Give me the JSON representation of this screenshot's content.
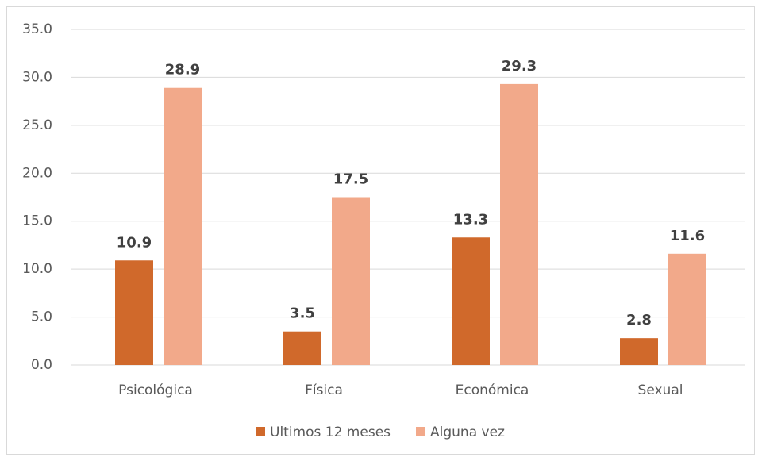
{
  "chart_data": {
    "type": "bar",
    "categories": [
      "Psicológica",
      "Física",
      "Económica",
      "Sexual"
    ],
    "series": [
      {
        "name": "Ultimos 12 meses",
        "color": "#d0692b",
        "values": [
          10.9,
          3.5,
          13.3,
          2.8
        ]
      },
      {
        "name": "Alguna vez",
        "color": "#f2a98a",
        "values": [
          28.9,
          17.5,
          29.3,
          11.6
        ]
      }
    ],
    "ylim": [
      0,
      35
    ],
    "yticks": [
      {
        "value": 0,
        "label": "0.0"
      },
      {
        "value": 5,
        "label": "5.0"
      },
      {
        "value": 10,
        "label": "10.0"
      },
      {
        "value": 15,
        "label": "15.0"
      },
      {
        "value": 20,
        "label": "20.0"
      },
      {
        "value": 25,
        "label": "25.0"
      },
      {
        "value": 30,
        "label": "30.0"
      },
      {
        "value": 35,
        "label": "35.0"
      }
    ],
    "grid": true,
    "legend": "bottom"
  }
}
